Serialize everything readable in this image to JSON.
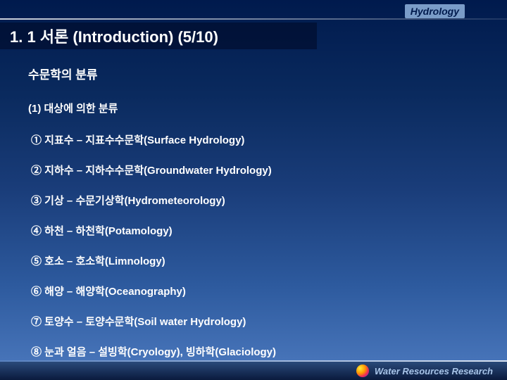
{
  "header": {
    "label": "Hydrology"
  },
  "title": "1. 1 서론 (Introduction) (5/10)",
  "content": {
    "section_title": "수문학의 분류",
    "subsection_title": "(1) 대상에 의한 분류",
    "items": [
      "① 지표수 – 지표수수문학(Surface Hydrology)",
      "② 지하수 – 지하수수문학(Groundwater Hydrology)",
      "③ 기상 – 수문기상학(Hydrometeorology)",
      "④ 하천 – 하천학(Potamology)",
      "⑤ 호소 – 호소학(Limnology)",
      "⑥ 해양 – 해양학(Oceanography)",
      "⑦ 토양수 – 토양수문학(Soil water Hydrology)",
      "⑧ 눈과 얼음 – 설빙학(Cryology), 빙하학(Glaciology)"
    ]
  },
  "footer": {
    "text": "Water Resources Research"
  }
}
